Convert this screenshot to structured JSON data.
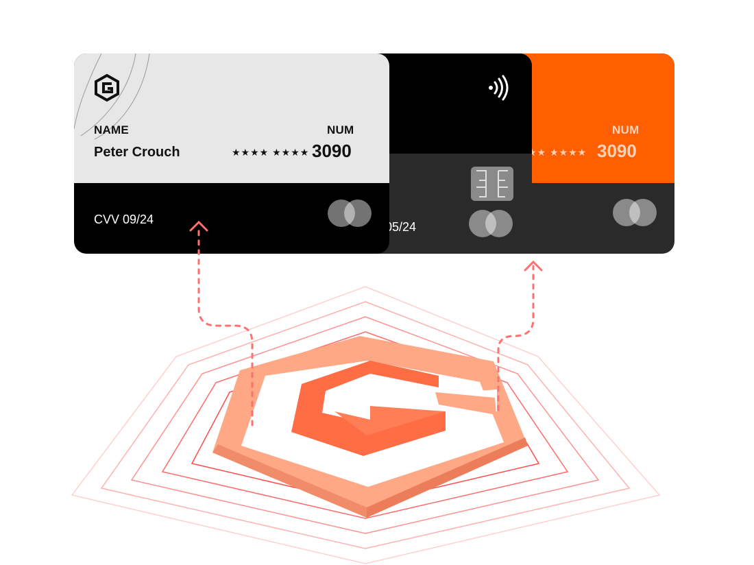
{
  "cards": {
    "orange": {
      "num_label": "NUM",
      "stars": "★★ ★★★★",
      "last4": "3090",
      "colors": {
        "top": "#ff5f00",
        "bottom": "#2a2a2a"
      }
    },
    "black": {
      "expiry": "05/24",
      "icons": [
        "contactless-icon",
        "chip-icon",
        "card-brand-icon"
      ]
    },
    "front": {
      "name_label": "NAME",
      "name": "Peter Crouch",
      "num_label": "NUM",
      "stars": "★★★★ ★★★★",
      "last4": "3090",
      "cvv": "CVV 09/24",
      "icons": [
        "logo-icon",
        "card-brand-icon"
      ]
    }
  },
  "illustration": {
    "icons": [
      "arrow-up-icon",
      "hexagon-logo-icon"
    ],
    "colors": {
      "accent": "#ff6a3a",
      "lines": "#ff4040"
    }
  }
}
